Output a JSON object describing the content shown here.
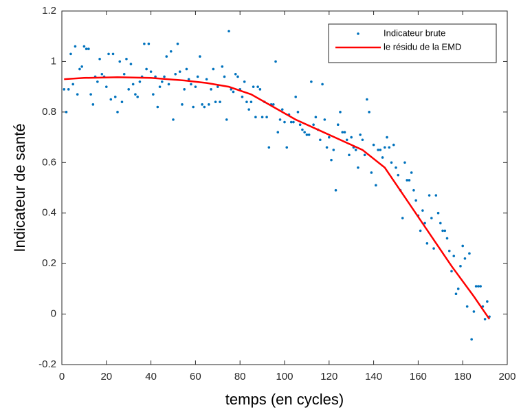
{
  "chart_data": {
    "type": "scatter",
    "xlabel": "temps (en cycles)",
    "ylabel": "Indicateur de santé",
    "xlim": [
      0,
      200
    ],
    "xticks": [
      0,
      20,
      40,
      60,
      80,
      100,
      120,
      140,
      160,
      180,
      200
    ],
    "ylim": [
      -0.2,
      1.2
    ],
    "yticks": [
      -0.2,
      0,
      0.2,
      0.4,
      0.6,
      0.8,
      1,
      1.2
    ],
    "box": true,
    "legend_position": "upper-right",
    "series": [
      {
        "name": "Indicateur brute",
        "color": "#0072bd",
        "mode": "markers",
        "x": [
          1,
          2,
          3,
          4,
          5,
          6,
          7,
          8,
          9,
          10,
          11,
          12,
          13,
          14,
          15,
          16,
          17,
          18,
          19,
          20,
          21,
          22,
          23,
          24,
          25,
          26,
          27,
          28,
          29,
          30,
          31,
          32,
          33,
          34,
          35,
          36,
          37,
          38,
          39,
          40,
          41,
          42,
          43,
          44,
          45,
          46,
          47,
          48,
          49,
          50,
          51,
          52,
          53,
          54,
          55,
          56,
          57,
          58,
          59,
          60,
          61,
          62,
          63,
          64,
          65,
          66,
          67,
          68,
          69,
          70,
          71,
          72,
          73,
          74,
          75,
          76,
          77,
          78,
          79,
          80,
          81,
          82,
          83,
          84,
          85,
          86,
          87,
          88,
          89,
          90,
          91,
          92,
          93,
          94,
          95,
          96,
          97,
          98,
          99,
          100,
          101,
          102,
          103,
          104,
          105,
          106,
          107,
          108,
          109,
          110,
          111,
          112,
          113,
          114,
          115,
          116,
          117,
          118,
          119,
          120,
          121,
          122,
          123,
          124,
          125,
          126,
          127,
          128,
          129,
          130,
          131,
          132,
          133,
          134,
          135,
          136,
          137,
          138,
          139,
          140,
          141,
          142,
          143,
          144,
          145,
          146,
          147,
          148,
          149,
          150,
          151,
          152,
          153,
          154,
          155,
          156,
          157,
          158,
          159,
          160,
          161,
          162,
          163,
          164,
          165,
          166,
          167,
          168,
          169,
          170,
          171,
          172,
          173,
          174,
          175,
          176,
          177,
          178,
          179,
          180,
          181,
          182,
          183,
          184,
          185,
          186,
          187,
          188,
          189,
          190,
          191,
          192
        ],
        "values": [
          0.89,
          0.8,
          0.89,
          1.03,
          0.91,
          1.06,
          0.87,
          0.97,
          0.98,
          1.06,
          1.05,
          1.05,
          0.87,
          0.83,
          0.94,
          0.92,
          1.01,
          0.95,
          0.94,
          0.9,
          1.03,
          0.85,
          1.03,
          0.86,
          0.8,
          1.0,
          0.84,
          0.95,
          1.01,
          0.89,
          0.99,
          0.91,
          0.87,
          0.86,
          0.92,
          0.94,
          1.07,
          0.97,
          1.07,
          0.96,
          0.87,
          0.94,
          0.82,
          0.9,
          0.92,
          0.94,
          1.02,
          0.91,
          1.04,
          0.77,
          0.95,
          1.07,
          0.96,
          0.83,
          0.89,
          0.97,
          0.93,
          0.91,
          0.82,
          0.9,
          0.94,
          1.02,
          0.83,
          0.82,
          0.93,
          0.83,
          0.89,
          0.97,
          0.84,
          0.9,
          0.84,
          0.98,
          0.94,
          0.77,
          1.12,
          0.89,
          0.88,
          0.95,
          0.94,
          0.89,
          0.86,
          0.92,
          0.84,
          0.81,
          0.84,
          0.9,
          0.78,
          0.9,
          0.89,
          0.78,
          0.84,
          0.78,
          0.66,
          0.83,
          0.83,
          1.0,
          0.72,
          0.77,
          0.81,
          0.76,
          0.66,
          0.79,
          0.76,
          0.76,
          0.86,
          0.8,
          0.75,
          0.73,
          0.72,
          0.71,
          0.71,
          0.92,
          0.75,
          0.78,
          0.73,
          0.69,
          0.91,
          0.77,
          0.66,
          0.7,
          0.61,
          0.65,
          0.49,
          0.75,
          0.8,
          0.72,
          0.72,
          0.69,
          0.63,
          0.7,
          0.66,
          0.65,
          0.58,
          0.71,
          0.69,
          0.63,
          0.85,
          0.8,
          0.56,
          0.67,
          0.51,
          0.65,
          0.65,
          0.62,
          0.66,
          0.7,
          0.66,
          0.6,
          0.67,
          0.58,
          0.55,
          0.49,
          0.38,
          0.6,
          0.53,
          0.53,
          0.56,
          0.49,
          0.45,
          0.39,
          0.33,
          0.41,
          0.36,
          0.28,
          0.47,
          0.38,
          0.26,
          0.47,
          0.4,
          0.36,
          0.33,
          0.33,
          0.3,
          0.25,
          0.17,
          0.23,
          0.08,
          0.1,
          0.19,
          0.27,
          0.22,
          0.03,
          0.24,
          -0.1,
          0.01,
          0.11,
          0.11,
          0.11,
          0.03,
          -0.02,
          0.05,
          -0.01
        ]
      },
      {
        "name": "le résidu de la EMD",
        "color": "#ff0000",
        "mode": "lines",
        "x": [
          1,
          10,
          25,
          40,
          55,
          65,
          75,
          85,
          95,
          105,
          115,
          125,
          135,
          145,
          155,
          165,
          175,
          185,
          192
        ],
        "values": [
          0.93,
          0.935,
          0.938,
          0.935,
          0.925,
          0.915,
          0.9,
          0.87,
          0.82,
          0.77,
          0.73,
          0.69,
          0.65,
          0.58,
          0.45,
          0.32,
          0.19,
          0.07,
          -0.02
        ]
      }
    ]
  }
}
